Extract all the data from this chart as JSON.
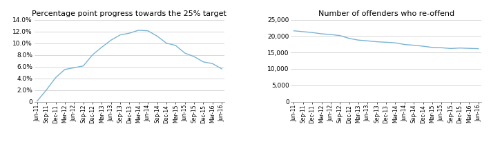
{
  "labels": [
    "Jun-11",
    "Sep-11",
    "Dec-11",
    "Mar-12",
    "Jun-12",
    "Sep-12",
    "Dec-12",
    "Mar-13",
    "Jun-13",
    "Sep-13",
    "Dec-13",
    "Mar-14",
    "Jun-14",
    "Sep-14",
    "Dec-14",
    "Mar-15",
    "Jun-15",
    "Sep-15",
    "Dec-15",
    "Mar-16",
    "Jun-16"
  ],
  "pct_values": [
    0.1,
    2.0,
    4.1,
    5.5,
    5.8,
    6.1,
    8.0,
    9.3,
    10.5,
    11.4,
    11.7,
    12.2,
    12.1,
    11.2,
    10.0,
    9.6,
    8.3,
    7.7,
    6.8,
    6.5,
    5.6
  ],
  "count_values": [
    21610,
    21343,
    21080,
    20694,
    20480,
    20153,
    19291,
    18770,
    18537,
    18269,
    18115,
    17939,
    17437,
    17207,
    16912,
    16545,
    16445,
    16214,
    16362,
    16257,
    16156
  ],
  "title1": "Percentage point progress towards the 25% target",
  "title2": "Number of offenders who re-offend",
  "line_color": "#7ab4d4",
  "grid_color": "#c8c8c8",
  "bg_color": "#ffffff",
  "ylim1": [
    0,
    14.0
  ],
  "yticks1": [
    0,
    2.0,
    4.0,
    6.0,
    8.0,
    10.0,
    12.0,
    14.0
  ],
  "ylim2": [
    0,
    25000
  ],
  "yticks2": [
    0,
    5000,
    10000,
    15000,
    20000,
    25000
  ],
  "title_fontsize": 8,
  "tick_fontsize": 5.5,
  "ytick_fontsize": 6.5
}
